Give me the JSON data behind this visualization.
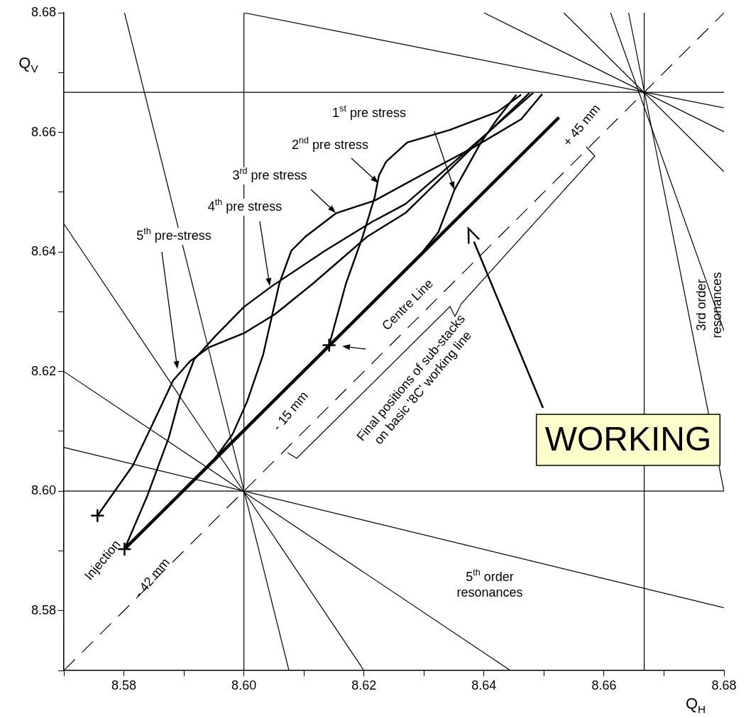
{
  "chart_data": {
    "type": "line",
    "xlabel": "Q$_{H}$",
    "ylabel": "Q$_{V}$",
    "xlim": [
      8.57,
      8.68
    ],
    "ylim": [
      8.57,
      8.68
    ],
    "xticks": [
      {
        "value": 8.57,
        "label": null
      },
      {
        "value": 8.58,
        "label": "8.58"
      },
      {
        "value": 8.59,
        "label": null
      },
      {
        "value": 8.6,
        "label": "8.60"
      },
      {
        "value": 8.61,
        "label": null
      },
      {
        "value": 8.62,
        "label": "8.62"
      },
      {
        "value": 8.63,
        "label": null
      },
      {
        "value": 8.64,
        "label": "8.64"
      },
      {
        "value": 8.65,
        "label": null
      },
      {
        "value": 8.66,
        "label": "8.66"
      },
      {
        "value": 8.67,
        "label": null
      },
      {
        "value": 8.68,
        "label": "8.68"
      }
    ],
    "yticks": [
      {
        "value": 8.57,
        "label": null
      },
      {
        "value": 8.58,
        "label": "8.58"
      },
      {
        "value": 8.59,
        "label": null
      },
      {
        "value": 8.6,
        "label": "8.60"
      },
      {
        "value": 8.61,
        "label": null
      },
      {
        "value": 8.62,
        "label": "8.62"
      },
      {
        "value": 8.63,
        "label": null
      },
      {
        "value": 8.64,
        "label": "8.64"
      },
      {
        "value": 8.65,
        "label": null
      },
      {
        "value": 8.66,
        "label": "8.66"
      },
      {
        "value": 8.67,
        "label": null
      },
      {
        "value": 8.68,
        "label": "8.68"
      }
    ],
    "series": [
      {
        "type": "line",
        "color": "#000000",
        "x": [
          8.6142,
          8.6296,
          8.6324,
          8.6351,
          8.6395,
          8.6422,
          8.6454
        ],
        "values": [
          8.6244,
          8.6398,
          8.6433,
          8.6504,
          8.6583,
          8.6622,
          8.6663
        ]
      },
      {
        "type": "line",
        "color": "#000000",
        "x": [
          8.6142,
          8.617,
          8.6198,
          8.6218,
          8.6225,
          8.6237,
          8.6272,
          8.6343,
          8.6422,
          8.6462
        ],
        "values": [
          8.6244,
          8.6347,
          8.6426,
          8.6492,
          8.6528,
          8.6551,
          8.6583,
          8.6604,
          8.6634,
          8.6663
        ]
      },
      {
        "type": "line",
        "color": "#000000",
        "x": [
          8.5801,
          8.5949,
          8.5981,
          8.6005,
          8.6032,
          8.6059,
          8.6079,
          8.6103,
          8.6154,
          8.6218,
          8.6304,
          8.6383,
          8.6462,
          8.6497
        ],
        "values": [
          8.5903,
          8.6051,
          8.6095,
          8.6149,
          8.6228,
          8.6347,
          8.6402,
          8.6426,
          8.6465,
          8.6486,
          8.6533,
          8.6575,
          8.6622,
          8.6664
        ]
      },
      {
        "type": "line",
        "color": "#000000",
        "x": [
          8.5801,
          8.5839,
          8.5875,
          8.5893,
          8.5917,
          8.5953,
          8.6,
          8.6047,
          8.6135,
          8.6213,
          8.6269,
          8.6375,
          8.6482
        ],
        "values": [
          8.5903,
          8.5992,
          8.609,
          8.6157,
          8.622,
          8.626,
          8.6308,
          8.6343,
          8.6402,
          8.645,
          8.648,
          8.6572,
          8.6666
        ]
      },
      {
        "type": "line",
        "color": "#000000",
        "x": [
          8.5756,
          8.5815,
          8.5854,
          8.5882,
          8.591,
          8.5941,
          8.6,
          8.6052,
          8.6115,
          8.6206,
          8.6269,
          8.6372,
          8.6476
        ],
        "values": [
          8.5959,
          8.6043,
          8.6125,
          8.6185,
          8.6217,
          8.624,
          8.6264,
          8.6296,
          8.6347,
          8.6426,
          8.6465,
          8.6566,
          8.6666
        ]
      },
      {
        "type": "line",
        "color": "#000000",
        "x": [
          8.5801,
          8.6525
        ],
        "values": [
          8.5903,
          8.6625
        ]
      },
      {
        "type": "line",
        "color": "#000000",
        "line_style": "dashed",
        "x": [
          8.57,
          8.68
        ],
        "values": [
          8.57,
          8.68
        ]
      },
      {
        "type": "line",
        "color": "#000000",
        "x": [
          8.5801,
          8.6075
        ],
        "values": [
          8.68,
          8.57
        ]
      },
      {
        "type": "line",
        "color": "#000000",
        "x": [
          8.57,
          8.62
        ],
        "values": [
          8.6447,
          8.57
        ]
      },
      {
        "type": "line",
        "color": "#000000",
        "x": [
          8.57,
          8.6444
        ],
        "values": [
          8.62,
          8.57
        ]
      },
      {
        "type": "line",
        "color": "#000000",
        "x": [
          8.57,
          8.68
        ],
        "values": [
          8.6073,
          8.5805
        ]
      },
      {
        "type": "line",
        "color": "#000000",
        "x": [
          8.57,
          8.68
        ],
        "values": [
          8.6,
          8.6
        ]
      },
      {
        "type": "line",
        "color": "#000000",
        "x": [
          8.6,
          8.6
        ],
        "values": [
          8.57,
          8.68
        ]
      },
      {
        "type": "line",
        "color": "#000000",
        "x": [
          8.57,
          8.68
        ],
        "values": [
          8.6667,
          8.6667
        ]
      },
      {
        "type": "line",
        "color": "#000000",
        "x": [
          8.6667,
          8.6667
        ],
        "values": [
          8.57,
          8.68
        ]
      },
      {
        "type": "line",
        "color": "#000000",
        "x": [
          8.6,
          8.68
        ],
        "values": [
          8.68,
          8.6641
        ]
      },
      {
        "type": "line",
        "color": "#000000",
        "x": [
          8.64,
          8.68
        ],
        "values": [
          8.68,
          8.6601
        ]
      },
      {
        "type": "line",
        "color": "#000000",
        "x": [
          8.6533,
          8.68
        ],
        "values": [
          8.68,
          8.6534
        ]
      },
      {
        "type": "line",
        "color": "#000000",
        "x": [
          8.6611,
          8.68
        ],
        "values": [
          8.68,
          8.6268
        ]
      },
      {
        "type": "line",
        "color": "#000000",
        "x": [
          8.6641,
          8.68
        ],
        "values": [
          8.68,
          8.6
        ]
      },
      {
        "type": "scatter",
        "color": "#000000",
        "marker": "cross",
        "x": [
          8.5756,
          8.5801
        ],
        "values": [
          8.5959,
          8.5903
        ]
      },
      {
        "type": "scatter",
        "color": "#000000",
        "marker": "cross",
        "x": [
          8.6142
        ],
        "values": [
          8.6244
        ]
      }
    ],
    "annotations": [
      "1$^{st}$ pre stress",
      "2$^{nd}$ pre stress",
      "3$^{rd}$ pre stress",
      "4$^{th}$ pre stress",
      "5$^{th}$ pre-stress",
      "Centre Line",
      "Final positions of sub-stacks\non basic '8C' working line",
      "Injection",
      "- 42 mm",
      "- 15 mm",
      "+ 45 mm",
      "3rd order\nresonances",
      "5$^{th}$ order\nresonances",
      "WORKING"
    ]
  }
}
